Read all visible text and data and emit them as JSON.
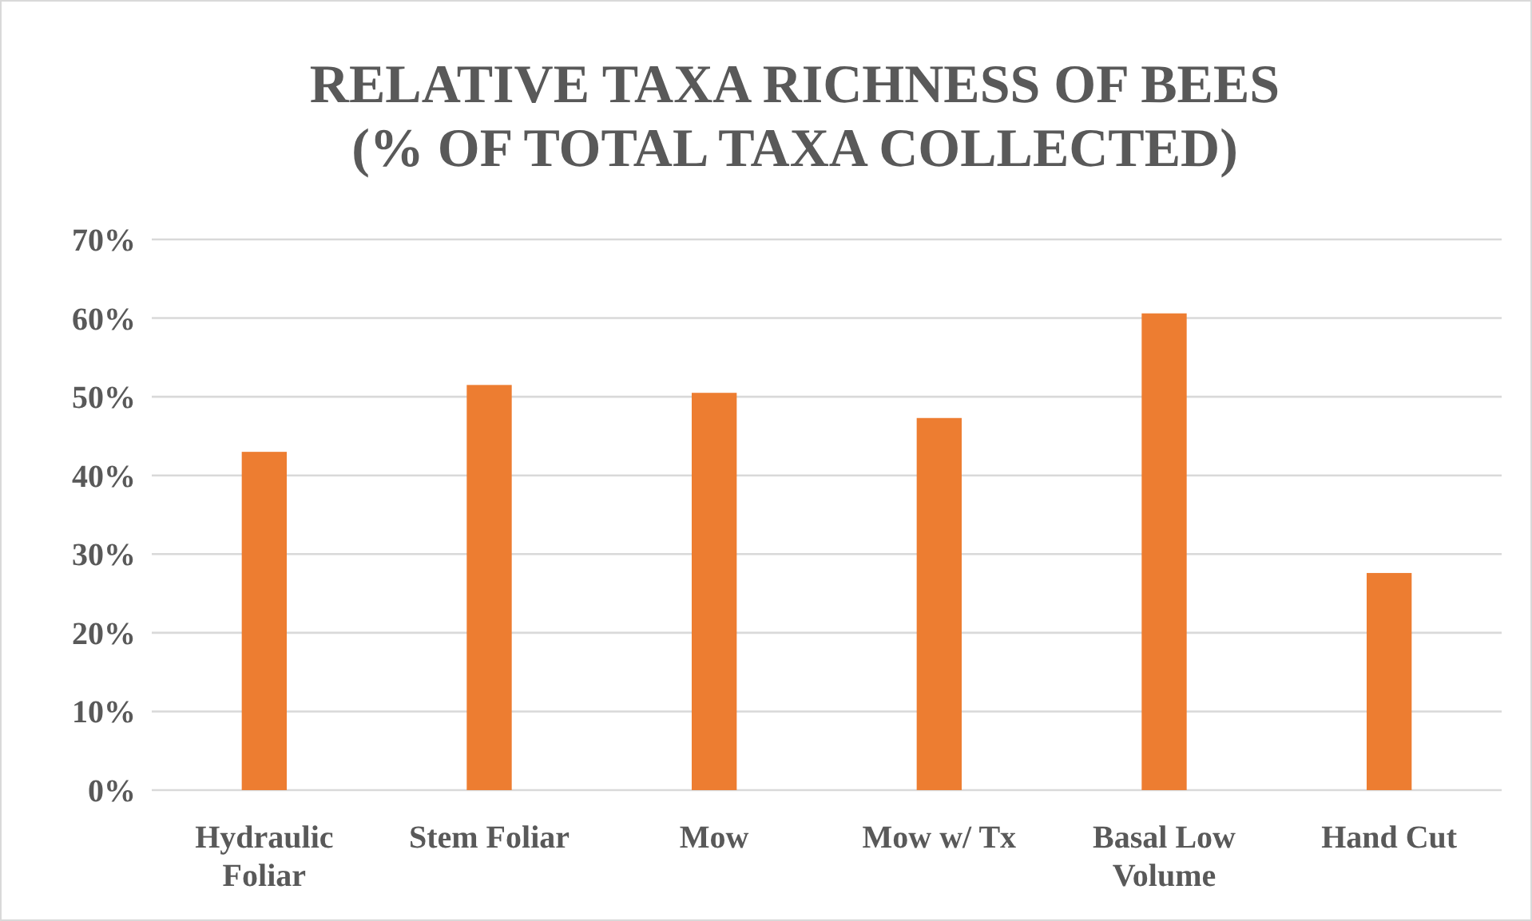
{
  "chart_data": {
    "type": "bar",
    "title": "RELATIVE TAXA RICHNESS OF BEES\n(% OF TOTAL TAXA COLLECTED)",
    "categories": [
      "Hydraulic Foliar",
      "Stem Foliar",
      "Mow",
      "Mow w/ Tx",
      "Basal Low Volume",
      "Hand Cut"
    ],
    "values": [
      43,
      51.5,
      50.5,
      47.3,
      60.6,
      27.6
    ],
    "color": "#ed7d31",
    "ylim": [
      0,
      70
    ],
    "yticks": [
      {
        "value": 0,
        "label": "0%"
      },
      {
        "value": 10,
        "label": "10%"
      },
      {
        "value": 20,
        "label": "20%"
      },
      {
        "value": 30,
        "label": "30%"
      },
      {
        "value": 40,
        "label": "40%"
      },
      {
        "value": 50,
        "label": "50%"
      },
      {
        "value": 60,
        "label": "60%"
      },
      {
        "value": 70,
        "label": "70%"
      }
    ],
    "grid": "y"
  }
}
